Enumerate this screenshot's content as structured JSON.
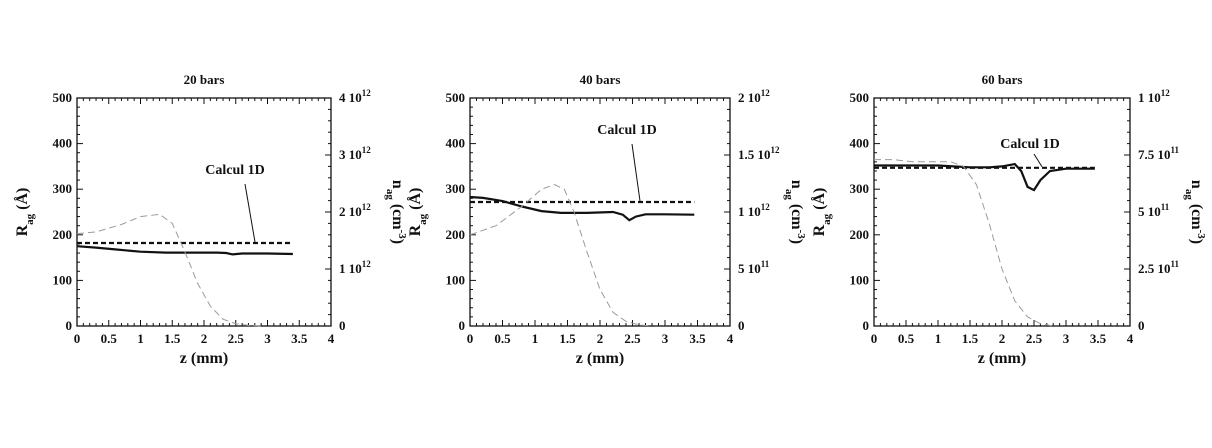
{
  "chart_data": [
    {
      "type": "line",
      "title": "20 bars",
      "xlabel": "z (mm)",
      "ylabel_main": "R",
      "ylabel_sub": "ag",
      "ylabel_unit": "(Å)",
      "y2label_main": "n",
      "y2label_sub": "ag",
      "y2label_unit": "(cm",
      "y2label_exp": "-3",
      "y2label_close": ")",
      "xlim": [
        0,
        4
      ],
      "ylim": [
        0,
        500
      ],
      "y2lim": [
        0,
        4000000000000.0
      ],
      "x_ticks": [
        "0",
        "0.5",
        "1",
        "1.5",
        "2",
        "2.5",
        "3",
        "3.5",
        "4"
      ],
      "y_ticks": [
        "0",
        "100",
        "200",
        "300",
        "400",
        "500"
      ],
      "y2_ticks": [
        {
          "base": "0",
          "exp": ""
        },
        {
          "base": "1 10",
          "exp": "12"
        },
        {
          "base": "2 10",
          "exp": "12"
        },
        {
          "base": "3 10",
          "exp": "12"
        },
        {
          "base": "4 10",
          "exp": "12"
        }
      ],
      "annotation": "Calcul 1D",
      "series": [
        {
          "axis": "left",
          "style": "solid",
          "x": [
            0,
            0.3,
            0.6,
            1.0,
            1.4,
            1.8,
            2.2,
            2.35,
            2.45,
            2.6,
            3.0,
            3.4
          ],
          "y": [
            175,
            172,
            168,
            163,
            161,
            161,
            161,
            160,
            157,
            159,
            159,
            158
          ]
        },
        {
          "axis": "left",
          "style": "dashed",
          "x": [
            0,
            3.4
          ],
          "y": [
            182,
            182
          ]
        },
        {
          "axis": "right",
          "style": "grey-dashed",
          "x": [
            0,
            0.3,
            0.7,
            1.0,
            1.3,
            1.5,
            1.7,
            1.9,
            2.1,
            2.3,
            2.5,
            2.7,
            2.9
          ],
          "y": [
            1620000000000.0,
            1650000000000.0,
            1780000000000.0,
            1920000000000.0,
            1960000000000.0,
            1800000000000.0,
            1300000000000.0,
            750000000000.0,
            350000000000.0,
            120000000000.0,
            40000000000.0,
            10000000000.0,
            0
          ]
        }
      ]
    },
    {
      "type": "line",
      "title": "40 bars",
      "xlabel": "z (mm)",
      "ylabel_main": "R",
      "ylabel_sub": "ag",
      "ylabel_unit": "(Å)",
      "y2label_main": "n",
      "y2label_sub": "ag",
      "y2label_unit": "(cm",
      "y2label_exp": "-3",
      "y2label_close": ")",
      "xlim": [
        0,
        4
      ],
      "ylim": [
        0,
        500
      ],
      "y2lim": [
        0,
        2000000000000.0
      ],
      "x_ticks": [
        "0",
        "0.5",
        "1",
        "1.5",
        "2",
        "2.5",
        "3",
        "3.5",
        "4"
      ],
      "y_ticks": [
        "0",
        "100",
        "200",
        "300",
        "400",
        "500"
      ],
      "y2_ticks": [
        {
          "base": "0",
          "exp": ""
        },
        {
          "base": "5 10",
          "exp": "11"
        },
        {
          "base": "1 10",
          "exp": "12"
        },
        {
          "base": "1.5 10",
          "exp": "12"
        },
        {
          "base": "2 10",
          "exp": "12"
        }
      ],
      "annotation": "Calcul 1D",
      "series": [
        {
          "axis": "left",
          "style": "solid",
          "x": [
            0,
            0.2,
            0.5,
            0.8,
            1.1,
            1.4,
            1.8,
            2.2,
            2.35,
            2.45,
            2.55,
            2.7,
            3.0,
            3.45
          ],
          "y": [
            283,
            281,
            274,
            262,
            252,
            248,
            248,
            250,
            244,
            232,
            240,
            245,
            245,
            244
          ]
        },
        {
          "axis": "left",
          "style": "dashed",
          "x": [
            0,
            3.45
          ],
          "y": [
            272,
            272
          ]
        },
        {
          "axis": "right",
          "style": "grey-dashed",
          "x": [
            0,
            0.4,
            0.8,
            1.1,
            1.3,
            1.45,
            1.6,
            1.8,
            2.0,
            2.2,
            2.4,
            2.6,
            2.8
          ],
          "y": [
            800000000000.0,
            880000000000.0,
            1050000000000.0,
            1200000000000.0,
            1240000000000.0,
            1200000000000.0,
            1000000000000.0,
            650000000000.0,
            320000000000.0,
            120000000000.0,
            40000000000.0,
            10000000000.0,
            0
          ]
        }
      ]
    },
    {
      "type": "line",
      "title": "60 bars",
      "xlabel": "z (mm)",
      "ylabel_main": "R",
      "ylabel_sub": "ag",
      "ylabel_unit": "(Å)",
      "y2label_main": "n",
      "y2label_sub": "ag",
      "y2label_unit": "(cm",
      "y2label_exp": "-3",
      "y2label_close": ")",
      "xlim": [
        0,
        4
      ],
      "ylim": [
        0,
        500
      ],
      "y2lim": [
        0,
        1000000000000.0
      ],
      "x_ticks": [
        "0",
        "0.5",
        "1",
        "1.5",
        "2",
        "2.5",
        "3",
        "3.5",
        "4"
      ],
      "y_ticks": [
        "0",
        "100",
        "200",
        "300",
        "400",
        "500"
      ],
      "y2_ticks": [
        {
          "base": "0",
          "exp": ""
        },
        {
          "base": "2.5 10",
          "exp": "11"
        },
        {
          "base": "5 10",
          "exp": "11"
        },
        {
          "base": "7.5 10",
          "exp": "11"
        },
        {
          "base": "1 10",
          "exp": "12"
        }
      ],
      "annotation": "Calcul 1D",
      "series": [
        {
          "axis": "left",
          "style": "solid",
          "x": [
            0,
            0.5,
            1.0,
            1.5,
            1.8,
            2.0,
            2.2,
            2.3,
            2.4,
            2.5,
            2.6,
            2.75,
            3.0,
            3.45
          ],
          "y": [
            352,
            352,
            352,
            348,
            348,
            350,
            355,
            340,
            305,
            298,
            320,
            340,
            345,
            345
          ]
        },
        {
          "axis": "left",
          "style": "dashed",
          "x": [
            0,
            3.45
          ],
          "y": [
            347,
            347
          ]
        },
        {
          "axis": "right",
          "style": "grey-dashed",
          "x": [
            0,
            0.3,
            0.6,
            0.9,
            1.2,
            1.4,
            1.6,
            1.8,
            2.0,
            2.2,
            2.4,
            2.6,
            2.8
          ],
          "y": [
            730000000000.0,
            730000000000.0,
            720000000000.0,
            720000000000.0,
            720000000000.0,
            700000000000.0,
            620000000000.0,
            450000000000.0,
            250000000000.0,
            110000000000.0,
            40000000000.0,
            10000000000.0,
            0
          ]
        }
      ]
    }
  ]
}
